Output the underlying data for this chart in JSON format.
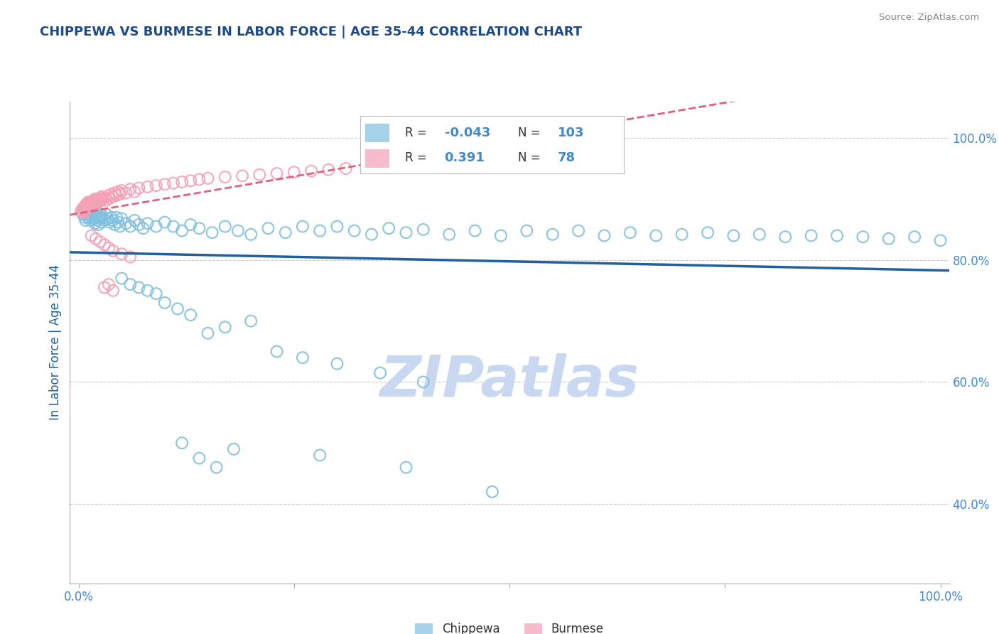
{
  "title": "CHIPPEWA VS BURMESE IN LABOR FORCE | AGE 35-44 CORRELATION CHART",
  "source_text": "Source: ZipAtlas.com",
  "ylabel": "In Labor Force | Age 35-44",
  "xlim": [
    -0.01,
    1.01
  ],
  "ylim": [
    0.27,
    1.06
  ],
  "y_ticks": [
    0.4,
    0.6,
    0.8,
    1.0
  ],
  "y_tick_labels": [
    "40.0%",
    "60.0%",
    "80.0%",
    "100.0%"
  ],
  "x_ticks": [
    0.0,
    0.25,
    0.5,
    0.75,
    1.0
  ],
  "x_tick_labels": [
    "0.0%",
    "",
    "",
    "",
    "100.0%"
  ],
  "chippewa_color": "#7fbfdf",
  "burmese_color": "#f4a0b5",
  "chippewa_line_color": "#2060a0",
  "burmese_line_color": "#e06080",
  "title_color": "#1a4a8a",
  "axis_label_color": "#2060a0",
  "tick_color": "#4488cc",
  "grid_color": "#cccccc",
  "background_color": "#ffffff",
  "watermark_text": "ZIPatlas",
  "watermark_color": "#c8d8f0",
  "chippewa_x": [
    0.005,
    0.007,
    0.008,
    0.009,
    0.01,
    0.011,
    0.012,
    0.013,
    0.014,
    0.015,
    0.016,
    0.017,
    0.018,
    0.019,
    0.02,
    0.021,
    0.022,
    0.023,
    0.024,
    0.025,
    0.026,
    0.027,
    0.028,
    0.03,
    0.032,
    0.034,
    0.036,
    0.038,
    0.04,
    0.042,
    0.044,
    0.046,
    0.048,
    0.05,
    0.055,
    0.06,
    0.065,
    0.07,
    0.075,
    0.08,
    0.09,
    0.1,
    0.11,
    0.12,
    0.13,
    0.14,
    0.155,
    0.17,
    0.185,
    0.2,
    0.22,
    0.24,
    0.26,
    0.28,
    0.3,
    0.32,
    0.34,
    0.36,
    0.38,
    0.4,
    0.43,
    0.46,
    0.49,
    0.52,
    0.55,
    0.58,
    0.61,
    0.64,
    0.67,
    0.7,
    0.73,
    0.76,
    0.79,
    0.82,
    0.85,
    0.88,
    0.91,
    0.94,
    0.97,
    1.0,
    0.05,
    0.06,
    0.07,
    0.08,
    0.09,
    0.1,
    0.115,
    0.13,
    0.15,
    0.17,
    0.2,
    0.23,
    0.26,
    0.3,
    0.35,
    0.4,
    0.12,
    0.14,
    0.16,
    0.18,
    0.28,
    0.38,
    0.48
  ],
  "chippewa_y": [
    0.875,
    0.87,
    0.865,
    0.88,
    0.875,
    0.87,
    0.885,
    0.878,
    0.865,
    0.872,
    0.868,
    0.88,
    0.875,
    0.86,
    0.875,
    0.87,
    0.865,
    0.858,
    0.872,
    0.868,
    0.875,
    0.862,
    0.87,
    0.865,
    0.875,
    0.868,
    0.862,
    0.87,
    0.865,
    0.858,
    0.87,
    0.862,
    0.855,
    0.868,
    0.86,
    0.855,
    0.865,
    0.858,
    0.852,
    0.86,
    0.855,
    0.862,
    0.855,
    0.848,
    0.858,
    0.852,
    0.845,
    0.855,
    0.848,
    0.842,
    0.852,
    0.845,
    0.855,
    0.848,
    0.855,
    0.848,
    0.842,
    0.852,
    0.845,
    0.85,
    0.842,
    0.848,
    0.84,
    0.848,
    0.842,
    0.848,
    0.84,
    0.845,
    0.84,
    0.842,
    0.845,
    0.84,
    0.842,
    0.838,
    0.84,
    0.84,
    0.838,
    0.835,
    0.838,
    0.832,
    0.77,
    0.76,
    0.755,
    0.75,
    0.745,
    0.73,
    0.72,
    0.71,
    0.68,
    0.69,
    0.7,
    0.65,
    0.64,
    0.63,
    0.615,
    0.6,
    0.5,
    0.475,
    0.46,
    0.49,
    0.48,
    0.46,
    0.42
  ],
  "burmese_x": [
    0.003,
    0.004,
    0.005,
    0.006,
    0.007,
    0.008,
    0.008,
    0.009,
    0.01,
    0.01,
    0.011,
    0.012,
    0.012,
    0.013,
    0.013,
    0.014,
    0.015,
    0.015,
    0.016,
    0.017,
    0.018,
    0.018,
    0.019,
    0.02,
    0.02,
    0.021,
    0.022,
    0.023,
    0.024,
    0.025,
    0.026,
    0.027,
    0.028,
    0.03,
    0.032,
    0.034,
    0.036,
    0.038,
    0.04,
    0.042,
    0.044,
    0.046,
    0.048,
    0.05,
    0.055,
    0.06,
    0.065,
    0.07,
    0.08,
    0.09,
    0.1,
    0.11,
    0.12,
    0.13,
    0.14,
    0.15,
    0.17,
    0.19,
    0.21,
    0.23,
    0.25,
    0.27,
    0.29,
    0.31,
    0.34,
    0.37,
    0.4,
    0.43,
    0.015,
    0.02,
    0.025,
    0.03,
    0.035,
    0.04,
    0.05,
    0.06,
    0.03,
    0.04,
    0.035
  ],
  "burmese_y": [
    0.88,
    0.878,
    0.885,
    0.882,
    0.879,
    0.89,
    0.887,
    0.884,
    0.892,
    0.888,
    0.895,
    0.891,
    0.887,
    0.893,
    0.889,
    0.895,
    0.892,
    0.888,
    0.895,
    0.891,
    0.898,
    0.894,
    0.9,
    0.896,
    0.892,
    0.898,
    0.895,
    0.9,
    0.896,
    0.902,
    0.898,
    0.904,
    0.9,
    0.902,
    0.898,
    0.905,
    0.901,
    0.908,
    0.904,
    0.91,
    0.906,
    0.912,
    0.908,
    0.914,
    0.91,
    0.916,
    0.912,
    0.918,
    0.92,
    0.922,
    0.924,
    0.926,
    0.928,
    0.93,
    0.932,
    0.934,
    0.936,
    0.938,
    0.94,
    0.942,
    0.944,
    0.946,
    0.948,
    0.95,
    0.952,
    0.954,
    0.956,
    0.958,
    0.84,
    0.835,
    0.83,
    0.825,
    0.82,
    0.815,
    0.81,
    0.805,
    0.755,
    0.75,
    0.76
  ]
}
